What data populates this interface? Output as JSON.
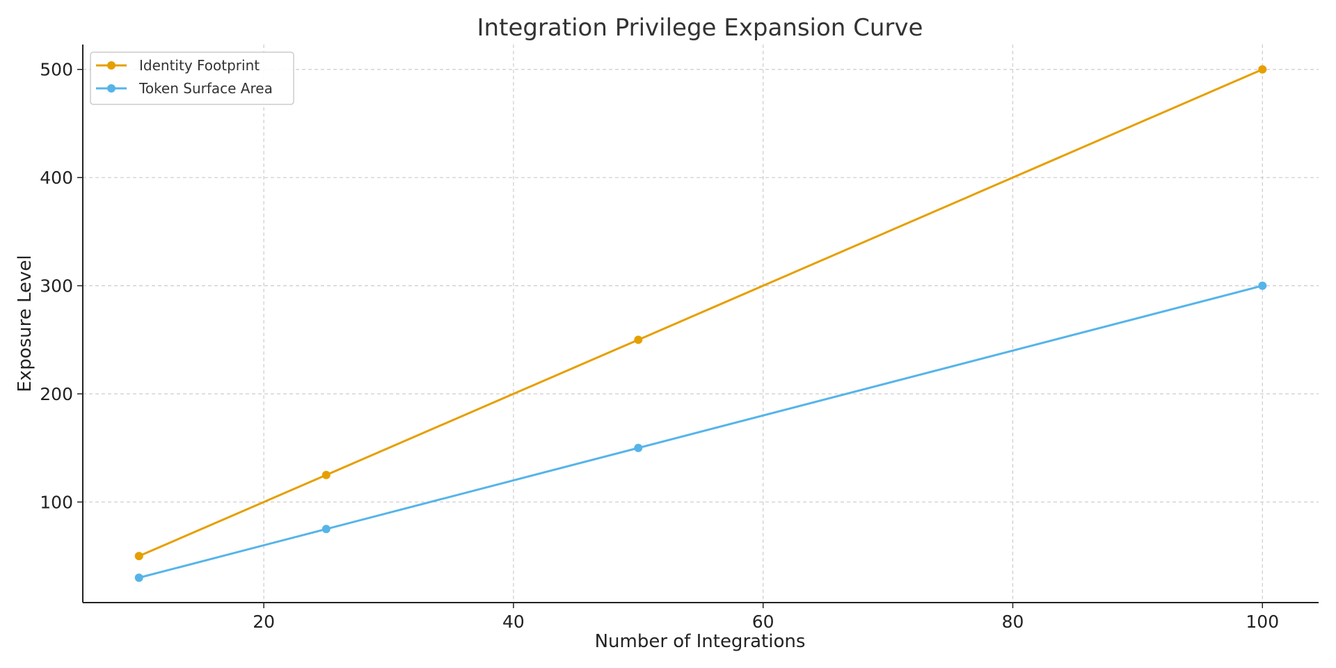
{
  "chart_data": {
    "type": "line",
    "title": "Integration Privilege Expansion Curve",
    "xlabel": "Number of Integrations",
    "ylabel": "Exposure Level",
    "x": [
      10,
      25,
      50,
      100
    ],
    "xlim": [
      5.5,
      104.5
    ],
    "ylim": [
      7,
      523
    ],
    "xticks": [
      20,
      40,
      60,
      80,
      100
    ],
    "yticks": [
      100,
      200,
      300,
      400,
      500
    ],
    "grid": true,
    "legend_position": "upper-left",
    "series": [
      {
        "name": "Identity Footprint",
        "values": [
          50,
          125,
          250,
          500
        ],
        "color": "#E69F00"
      },
      {
        "name": "Token Surface Area",
        "values": [
          30,
          75,
          150,
          300
        ],
        "color": "#56B4E9"
      }
    ]
  }
}
